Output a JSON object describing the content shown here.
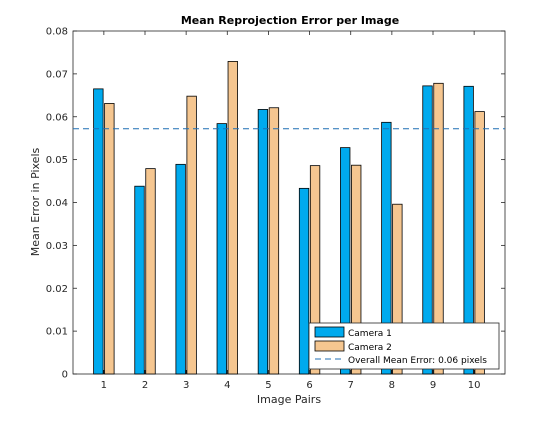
{
  "chart_data": {
    "type": "bar",
    "title": "Mean Reprojection Error per Image",
    "xlabel": "Image Pairs",
    "ylabel": "Mean Error in Pixels",
    "categories": [
      "1",
      "2",
      "3",
      "4",
      "5",
      "6",
      "7",
      "8",
      "9",
      "10"
    ],
    "ylim": [
      0,
      0.08
    ],
    "yticks": [
      "0",
      "0.01",
      "0.02",
      "0.03",
      "0.04",
      "0.05",
      "0.06",
      "0.07",
      "0.08"
    ],
    "series": [
      {
        "name": "Camera 1",
        "color": "#00aaee",
        "values": [
          0.0665,
          0.0438,
          0.0489,
          0.0584,
          0.0617,
          0.0433,
          0.0528,
          0.0587,
          0.0672,
          0.0671
        ]
      },
      {
        "name": "Camera 2",
        "color": "#f5c690",
        "values": [
          0.0631,
          0.0479,
          0.0648,
          0.0729,
          0.0621,
          0.0486,
          0.0487,
          0.0396,
          0.0678,
          0.0612
        ]
      }
    ],
    "reference_line": {
      "name": "Overall Mean Error: 0.06 pixels",
      "value": 0.0572,
      "color": "#1f6fb4",
      "style": "dashed"
    },
    "legend_position": "bottom-right",
    "grid": false
  }
}
